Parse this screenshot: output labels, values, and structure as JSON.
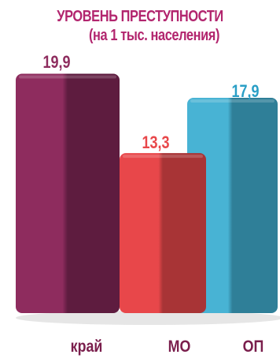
{
  "chart_data": {
    "type": "bar",
    "title": "УРОВЕНЬ ПРЕСТУПНОСТИ",
    "subtitle": "(на 1 тыс. населения)",
    "categories": [
      "край",
      "МО",
      "ОП"
    ],
    "values": [
      19.9,
      13.3,
      17.9
    ],
    "value_labels": [
      "19,9",
      "13,3",
      "17,9"
    ],
    "bar_colors": [
      "#8e2c5e",
      "#e8474a",
      "#48b3d4"
    ],
    "bar_dark_colors": [
      "#5e1c3f",
      "#a83436",
      "#2f7f98"
    ],
    "label_colors": [
      "#8e2c5e",
      "#e8474a",
      "#2a9fc6"
    ],
    "title_color": "#b2256e",
    "category_label_color": "#7a1e4c",
    "ylim": [
      0,
      20
    ],
    "xlabel": "",
    "ylabel": "",
    "grid": false,
    "legend": "none"
  }
}
